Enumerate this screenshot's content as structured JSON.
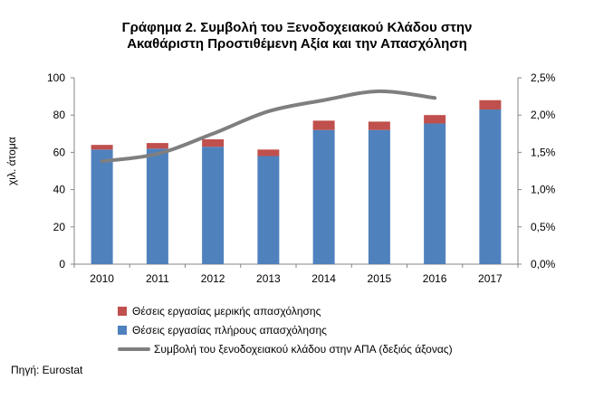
{
  "chart_data": {
    "type": "bar",
    "title": "Γράφημα 2.  Συμβολή του Ξενοδοχειακού Κλάδου στην Ακαθάριστη Προστιθέμενη Αξία και την Απασχόληση",
    "title_lines": [
      "Γράφημα 2.  Συμβολή του Ξενοδοχειακού Κλάδου στην",
      "Ακαθάριστη Προστιθέμενη Αξία και την Απασχόληση"
    ],
    "ylabel": "χιλ. άτομα",
    "categories": [
      "2010",
      "2011",
      "2012",
      "2013",
      "2014",
      "2015",
      "2016",
      "2017"
    ],
    "ylim": [
      0,
      100
    ],
    "y_ticks": [
      "0",
      "20",
      "40",
      "60",
      "80",
      "100"
    ],
    "y2lim": [
      0,
      2.5
    ],
    "y2_ticks": [
      "0,0%",
      "0,5%",
      "1,0%",
      "1,5%",
      "2,0%",
      "2,5%"
    ],
    "stacked": true,
    "series": [
      {
        "name": "Θέσεις εργασίας πλήρους απασχόλησης",
        "values": [
          61.5,
          62,
          63,
          58,
          72,
          72,
          75.5,
          83
        ],
        "color": "#4f81bd"
      },
      {
        "name": "Θέσεις εργασίας μερικής απασχόλησης",
        "values": [
          2.5,
          3,
          4,
          3.5,
          5,
          4.5,
          4.5,
          5
        ],
        "color": "#c0504d"
      },
      {
        "name": "Συμβολή του ξενοδοχειακού κλάδου στην ΑΠΑ (δεξιός άξονας)",
        "type": "line",
        "axis": "right",
        "values": [
          1.38,
          1.48,
          1.75,
          2.05,
          2.2,
          2.32,
          2.23,
          null
        ],
        "color": "#7f7f7f"
      }
    ],
    "grid": false,
    "legend_position": "bottom"
  },
  "legend": [
    {
      "label": "Θέσεις εργασίας μερικής απασχόλησης",
      "color": "#c0504d",
      "kind": "box"
    },
    {
      "label": "Θέσεις εργασίας πλήρους απασχόλησης",
      "color": "#4f81bd",
      "kind": "box"
    },
    {
      "label": "Συμβολή του ξενοδοχειακού κλάδου στην ΑΠΑ (δεξιός άξονας)",
      "color": "#7f7f7f",
      "kind": "line"
    }
  ],
  "source": "Πηγή: Eurostat"
}
